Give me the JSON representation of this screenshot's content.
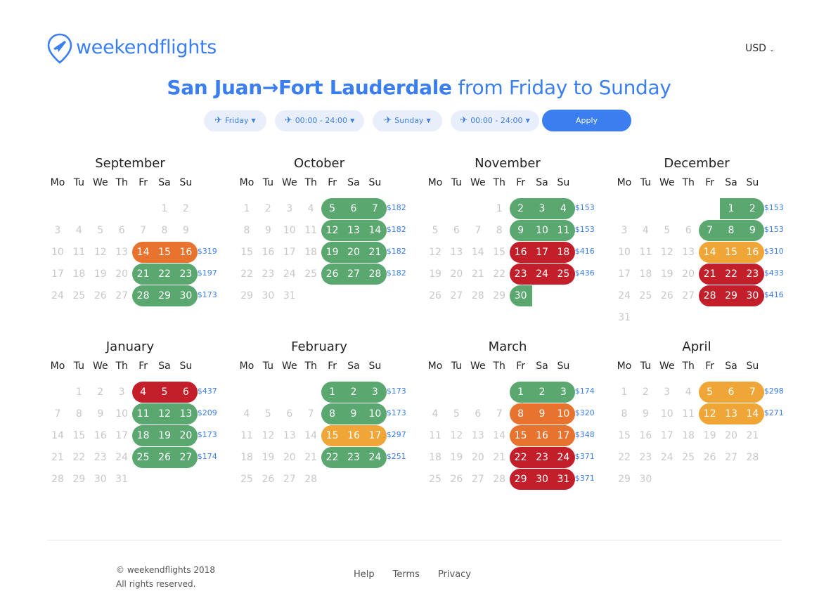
{
  "brand": {
    "name": "weekendflights"
  },
  "currency": "USD",
  "title": {
    "route": "San Juan→Fort Lauderdale",
    "when": "from Friday to Sunday"
  },
  "filters": {
    "depart_day": "Friday",
    "depart_time": "00:00 - 24:00",
    "return_day": "Sunday",
    "return_time": "00:00 - 24:00",
    "apply": "Apply"
  },
  "weekdays": [
    "Mo",
    "Tu",
    "We",
    "Th",
    "Fr",
    "Sa",
    "Su"
  ],
  "colors": {
    "green": "#5aa870",
    "orange": "#e8732e",
    "yellow": "#f0a637",
    "red": "#c21f2a",
    "accent": "#3a7ef0"
  },
  "months": [
    {
      "name": "September",
      "offset": 5,
      "days": 30,
      "weekends": [
        {
          "fri": 14,
          "color": "orange",
          "price": "$319"
        },
        {
          "fri": 21,
          "color": "green",
          "price": "$197"
        },
        {
          "fri": 28,
          "color": "green",
          "price": "$173"
        }
      ]
    },
    {
      "name": "October",
      "offset": 0,
      "days": 31,
      "weekends": [
        {
          "fri": 5,
          "color": "green",
          "price": "$182"
        },
        {
          "fri": 12,
          "color": "green",
          "price": "$182"
        },
        {
          "fri": 19,
          "color": "green",
          "price": "$182"
        },
        {
          "fri": 26,
          "color": "green",
          "price": "$182"
        }
      ]
    },
    {
      "name": "November",
      "offset": 3,
      "days": 30,
      "weekends": [
        {
          "fri": 2,
          "color": "green",
          "price": "$153"
        },
        {
          "fri": 9,
          "color": "green",
          "price": "$153"
        },
        {
          "fri": 16,
          "color": "red",
          "price": "$416"
        },
        {
          "fri": 23,
          "color": "red",
          "price": "$436"
        },
        {
          "fri": 30,
          "color": "green",
          "price": ""
        }
      ]
    },
    {
      "name": "December",
      "offset": 5,
      "days": 31,
      "weekends": [
        {
          "fri": 0,
          "color": "green",
          "price": "$153"
        },
        {
          "fri": 7,
          "color": "green",
          "price": "$153"
        },
        {
          "fri": 14,
          "color": "yellow",
          "price": "$310"
        },
        {
          "fri": 21,
          "color": "red",
          "price": "$433"
        },
        {
          "fri": 28,
          "color": "red",
          "price": "$416"
        }
      ]
    },
    {
      "name": "January",
      "offset": 1,
      "days": 31,
      "weekends": [
        {
          "fri": 4,
          "color": "red",
          "price": "$437"
        },
        {
          "fri": 11,
          "color": "green",
          "price": "$209"
        },
        {
          "fri": 18,
          "color": "green",
          "price": "$173"
        },
        {
          "fri": 25,
          "color": "green",
          "price": "$174"
        }
      ]
    },
    {
      "name": "February",
      "offset": 4,
      "days": 28,
      "weekends": [
        {
          "fri": 1,
          "color": "green",
          "price": "$173"
        },
        {
          "fri": 8,
          "color": "green",
          "price": "$173"
        },
        {
          "fri": 15,
          "color": "yellow",
          "price": "$297"
        },
        {
          "fri": 22,
          "color": "green",
          "price": "$251"
        }
      ]
    },
    {
      "name": "March",
      "offset": 4,
      "days": 31,
      "weekends": [
        {
          "fri": 1,
          "color": "green",
          "price": "$174"
        },
        {
          "fri": 8,
          "color": "orange",
          "price": "$320"
        },
        {
          "fri": 15,
          "color": "orange",
          "price": "$348"
        },
        {
          "fri": 22,
          "color": "red",
          "price": "$371"
        },
        {
          "fri": 29,
          "color": "red",
          "price": "$371"
        }
      ]
    },
    {
      "name": "April",
      "offset": 0,
      "days": 30,
      "weekends": [
        {
          "fri": 5,
          "color": "yellow",
          "price": "$298"
        },
        {
          "fri": 12,
          "color": "yellow",
          "price": "$271"
        }
      ]
    }
  ],
  "footer": {
    "copyright": "© weekendflights 2018",
    "rights": "All rights reserved.",
    "links": [
      "Help",
      "Terms",
      "Privacy"
    ]
  }
}
